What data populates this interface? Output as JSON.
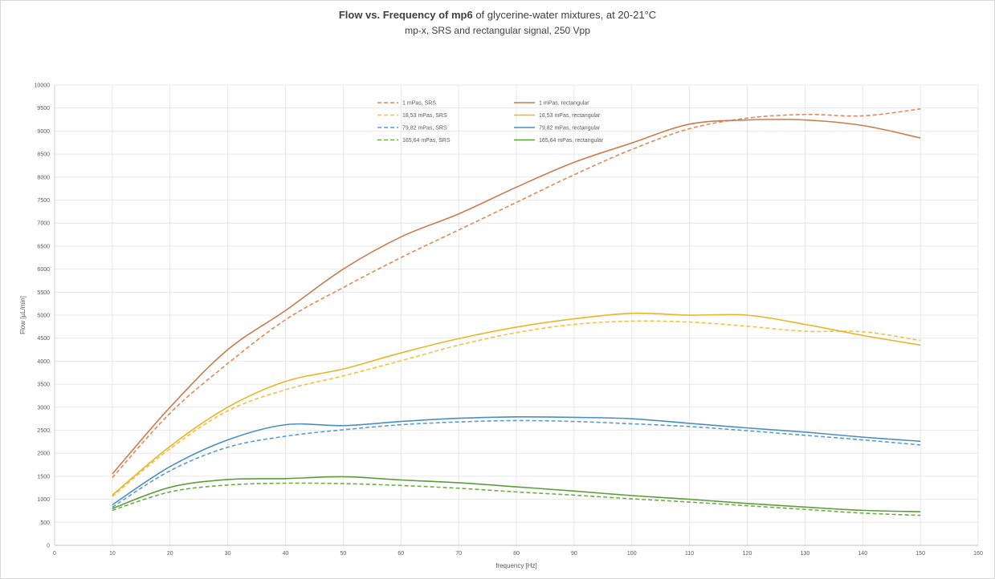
{
  "chart_data": {
    "type": "line",
    "title_bold_1": "Flow vs. Frequency of mp6",
    "title_normal": " of glycerine-water mixtures, at 20-21°C",
    "subtitle": "mp-x, SRS and rectangular signal, 250 Vpp",
    "xlabel": "frequency [Hz]",
    "ylabel": "Flow [µL/min]",
    "xlim": [
      0,
      160
    ],
    "ylim": [
      0,
      10000
    ],
    "x_ticks": [
      0,
      10,
      20,
      30,
      40,
      50,
      60,
      70,
      80,
      90,
      100,
      110,
      120,
      130,
      140,
      150,
      160
    ],
    "y_ticks": [
      0,
      500,
      1000,
      1500,
      2000,
      2500,
      3000,
      3500,
      4000,
      4500,
      5000,
      5500,
      6000,
      6500,
      7000,
      7500,
      8000,
      8500,
      9000,
      9500,
      10000
    ],
    "grid": true,
    "legend_position": "top",
    "x": [
      10,
      20,
      30,
      40,
      50,
      60,
      70,
      80,
      90,
      100,
      110,
      120,
      130,
      140,
      150
    ],
    "series": [
      {
        "name": "1 mPas, SRS",
        "style": "dashed",
        "color": "#e0895a",
        "values": [
          1470,
          2870,
          3950,
          4900,
          5600,
          6250,
          6850,
          7450,
          8050,
          8600,
          9050,
          9280,
          9360,
          9330,
          9480
        ]
      },
      {
        "name": "1 mPas, rectangular",
        "style": "solid",
        "color": "#c97c4f",
        "values": [
          1550,
          3000,
          4250,
          5100,
          6000,
          6700,
          7200,
          7780,
          8320,
          8740,
          9150,
          9240,
          9240,
          9120,
          8850
        ]
      },
      {
        "name": "18,53 mPas, SRS",
        "style": "dashed",
        "color": "#f3c245",
        "values": [
          1060,
          2100,
          2920,
          3380,
          3680,
          4010,
          4350,
          4620,
          4800,
          4870,
          4850,
          4760,
          4650,
          4640,
          4450
        ]
      },
      {
        "name": "18,53 mPas, rectangular",
        "style": "solid",
        "color": "#e6b729",
        "values": [
          1090,
          2150,
          3000,
          3560,
          3830,
          4180,
          4490,
          4740,
          4920,
          5040,
          5000,
          5000,
          4800,
          4560,
          4350
        ]
      },
      {
        "name": "79,82 mPas, SRS",
        "style": "dashed",
        "color": "#5b9bd5",
        "values": [
          830,
          1620,
          2130,
          2370,
          2510,
          2620,
          2680,
          2710,
          2690,
          2640,
          2580,
          2490,
          2390,
          2290,
          2180
        ]
      },
      {
        "name": "79,82 mPas, rectangular",
        "style": "solid",
        "color": "#4a8fc0",
        "values": [
          880,
          1710,
          2290,
          2620,
          2600,
          2690,
          2760,
          2790,
          2780,
          2750,
          2650,
          2550,
          2460,
          2350,
          2260
        ]
      },
      {
        "name": "165,64 mPas, SRS",
        "style": "dashed",
        "color": "#70ad47",
        "values": [
          760,
          1160,
          1310,
          1350,
          1340,
          1300,
          1240,
          1160,
          1090,
          1010,
          940,
          860,
          780,
          700,
          650
        ]
      },
      {
        "name": "165,64 mPas, rectangular",
        "style": "solid",
        "color": "#5e9e3a",
        "values": [
          800,
          1260,
          1430,
          1450,
          1490,
          1420,
          1360,
          1270,
          1180,
          1080,
          1000,
          910,
          830,
          760,
          730
        ]
      }
    ]
  }
}
